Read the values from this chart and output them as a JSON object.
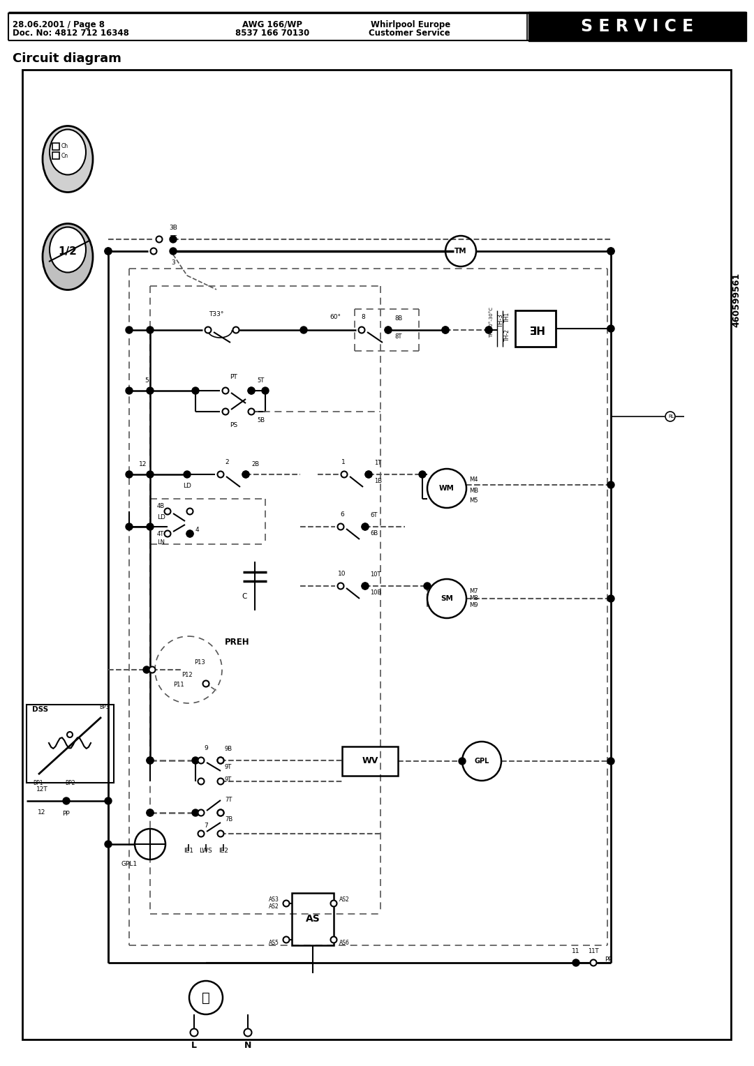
{
  "header_left_line1": "28.06.2001 / Page 8",
  "header_left_line2": "Doc. No: 4812 712 16348",
  "header_center_line1": "AWG 166/WP",
  "header_center_line2": "8537 166 70130",
  "header_right_line1": "Whirlpool Europe",
  "header_right_line2": "Customer Service",
  "header_service": "S E R V I C E",
  "title": "Circuit diagram",
  "side_number": "460599561",
  "bg_color": "#ffffff"
}
